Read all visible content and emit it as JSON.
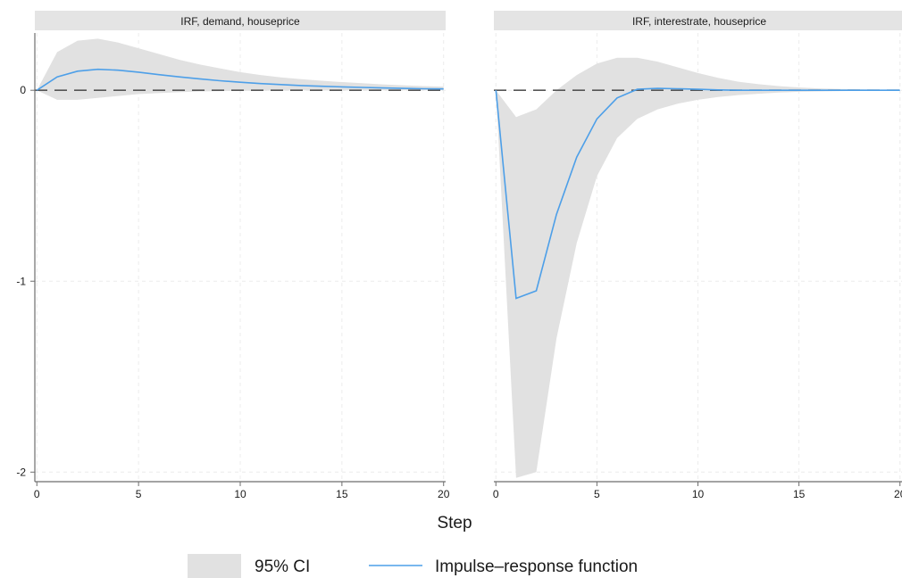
{
  "chart_data": {
    "type": "line",
    "xlabel": "Step",
    "legend": {
      "placement": "bottom",
      "entries": [
        {
          "label": "95% CI",
          "kind": "band",
          "color": "#e1e1e1"
        },
        {
          "label": "Impulse–response function",
          "kind": "line",
          "color": "#4d9fe8"
        }
      ]
    },
    "ylim": [
      -2.05,
      0.3
    ],
    "yticks": [
      0,
      -1,
      -2
    ],
    "xlim": [
      -0.1,
      20.1
    ],
    "xticks": [
      0,
      5,
      10,
      15,
      20
    ],
    "grid": true,
    "colors": {
      "band": "#e1e1e1",
      "line": "#4d9fe8",
      "strip": "#e4e4e4",
      "grid": "#ececec",
      "axis": "#6e6e6e",
      "ref": "#555555"
    },
    "panels": [
      {
        "title": "IRF, demand, houseprice",
        "x": [
          0,
          1,
          2,
          3,
          4,
          5,
          6,
          7,
          8,
          9,
          10,
          11,
          12,
          13,
          14,
          15,
          16,
          17,
          18,
          19,
          20
        ],
        "irf": [
          0,
          0.07,
          0.1,
          0.11,
          0.105,
          0.095,
          0.082,
          0.07,
          0.06,
          0.05,
          0.042,
          0.035,
          0.03,
          0.025,
          0.021,
          0.018,
          0.015,
          0.012,
          0.01,
          0.008,
          0.007
        ],
        "lower": [
          0,
          -0.05,
          -0.05,
          -0.04,
          -0.03,
          -0.02,
          -0.015,
          -0.01,
          -0.006,
          -0.004,
          -0.003,
          -0.002,
          -0.002,
          -0.001,
          -0.001,
          -0.001,
          -0.001,
          0,
          0,
          0,
          0
        ],
        "upper": [
          0,
          0.2,
          0.26,
          0.27,
          0.25,
          0.22,
          0.19,
          0.16,
          0.135,
          0.115,
          0.095,
          0.08,
          0.068,
          0.058,
          0.05,
          0.043,
          0.037,
          0.031,
          0.026,
          0.022,
          0.019
        ]
      },
      {
        "title": "IRF, interestrate, houseprice",
        "x": [
          0,
          1,
          2,
          3,
          4,
          5,
          6,
          7,
          8,
          9,
          10,
          11,
          12,
          13,
          14,
          15,
          16,
          17,
          18,
          19,
          20
        ],
        "irf": [
          0,
          -1.09,
          -1.05,
          -0.65,
          -0.35,
          -0.15,
          -0.04,
          0.005,
          0.01,
          0.008,
          0.005,
          0.002,
          0,
          0,
          0,
          0,
          0,
          0,
          0,
          0,
          0
        ],
        "lower": [
          0,
          -2.03,
          -2.0,
          -1.3,
          -0.8,
          -0.45,
          -0.25,
          -0.15,
          -0.1,
          -0.07,
          -0.05,
          -0.035,
          -0.025,
          -0.018,
          -0.012,
          -0.008,
          -0.006,
          -0.004,
          -0.003,
          -0.002,
          -0.001
        ],
        "upper": [
          0,
          -0.14,
          -0.1,
          0.0,
          0.08,
          0.14,
          0.17,
          0.17,
          0.15,
          0.12,
          0.09,
          0.065,
          0.045,
          0.032,
          0.022,
          0.015,
          0.01,
          0.007,
          0.005,
          0.003,
          0.002
        ]
      }
    ]
  }
}
